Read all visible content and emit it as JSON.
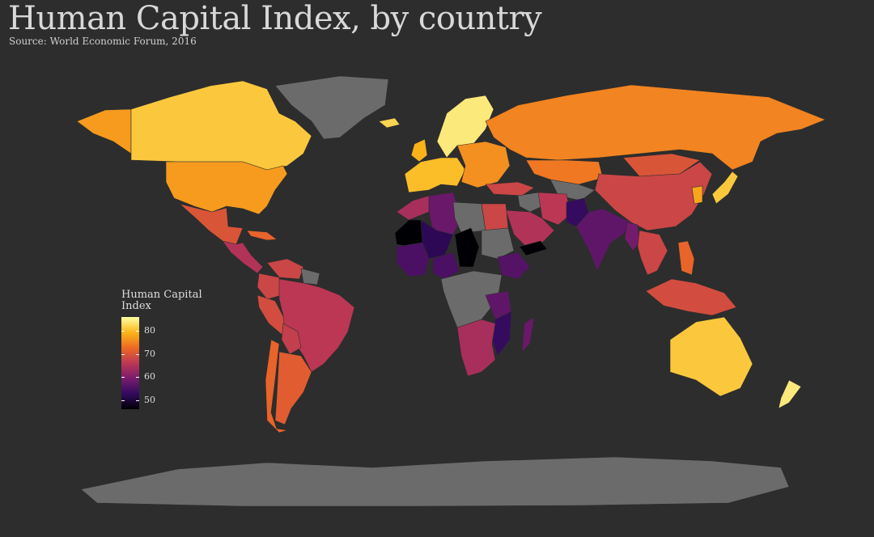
{
  "title": "Human Capital Index, by country",
  "subtitle": "Source: World Economic Forum, 2016",
  "legend": {
    "title_line1": "Human Capital",
    "title_line2": "Index",
    "ticks": [
      80,
      70,
      60,
      50
    ],
    "tick_labels": [
      "80",
      "70",
      "60",
      "50"
    ],
    "range": [
      46,
      86
    ],
    "colors": [
      "#000004",
      "#320a5e",
      "#781c6d",
      "#bc3754",
      "#ed6925",
      "#fbb61a",
      "#fcffa4"
    ]
  },
  "no_data_color": "#6b6b6b",
  "regions": [
    {
      "name": "canada",
      "value": 81
    },
    {
      "name": "usa",
      "value": 77
    },
    {
      "name": "mexico",
      "value": 70
    },
    {
      "name": "central-america",
      "value": 65
    },
    {
      "name": "cuba",
      "value": 72
    },
    {
      "name": "alaska",
      "value": 77
    },
    {
      "name": "greenland",
      "value": null
    },
    {
      "name": "brazil",
      "value": 66
    },
    {
      "name": "colombia",
      "value": 68
    },
    {
      "name": "peru",
      "value": 69
    },
    {
      "name": "bolivia",
      "value": 67
    },
    {
      "name": "argentina",
      "value": 71
    },
    {
      "name": "chile",
      "value": 72
    },
    {
      "name": "venezuela",
      "value": 68
    },
    {
      "name": "guyana",
      "value": null
    },
    {
      "name": "iceland",
      "value": 82
    },
    {
      "name": "scandinavia",
      "value": 84
    },
    {
      "name": "uk",
      "value": 79
    },
    {
      "name": "western-europe",
      "value": 80
    },
    {
      "name": "eastern-europe",
      "value": 76
    },
    {
      "name": "russia",
      "value": 75
    },
    {
      "name": "kazakhstan",
      "value": 74
    },
    {
      "name": "central-asia",
      "value": null
    },
    {
      "name": "turkey",
      "value": 68
    },
    {
      "name": "middle-east",
      "value": null
    },
    {
      "name": "iran",
      "value": 66
    },
    {
      "name": "saudi-arabia",
      "value": 65
    },
    {
      "name": "yemen",
      "value": 46
    },
    {
      "name": "china",
      "value": 68
    },
    {
      "name": "mongolia",
      "value": 70
    },
    {
      "name": "india",
      "value": 57
    },
    {
      "name": "pakistan",
      "value": 53
    },
    {
      "name": "southeast-asia",
      "value": 68
    },
    {
      "name": "myanmar",
      "value": 59
    },
    {
      "name": "philippines",
      "value": 72
    },
    {
      "name": "indonesia",
      "value": 69
    },
    {
      "name": "japan",
      "value": 81
    },
    {
      "name": "korea",
      "value": 78
    },
    {
      "name": "australia",
      "value": 81
    },
    {
      "name": "new-zealand",
      "value": 84
    },
    {
      "name": "morocco",
      "value": 64
    },
    {
      "name": "algeria",
      "value": 58
    },
    {
      "name": "libya",
      "value": null
    },
    {
      "name": "egypt",
      "value": 68
    },
    {
      "name": "mauritania",
      "value": 45
    },
    {
      "name": "mali",
      "value": 52
    },
    {
      "name": "west-africa",
      "value": 55
    },
    {
      "name": "nigeria",
      "value": 55
    },
    {
      "name": "chad",
      "value": 46
    },
    {
      "name": "sudan",
      "value": null
    },
    {
      "name": "ethiopia",
      "value": 56
    },
    {
      "name": "central-africa",
      "value": null
    },
    {
      "name": "tanzania",
      "value": 57
    },
    {
      "name": "mozambique",
      "value": 53
    },
    {
      "name": "madagascar",
      "value": 58
    },
    {
      "name": "southern-africa",
      "value": 64
    },
    {
      "name": "antarctica",
      "value": null
    }
  ]
}
